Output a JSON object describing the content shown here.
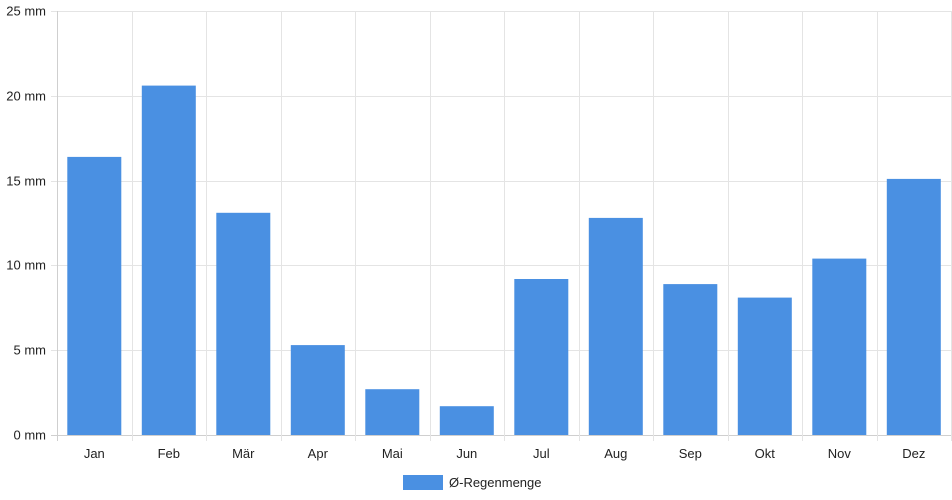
{
  "chart_data": {
    "type": "bar",
    "categories": [
      "Jan",
      "Feb",
      "Mär",
      "Apr",
      "Mai",
      "Jun",
      "Jul",
      "Aug",
      "Sep",
      "Okt",
      "Nov",
      "Dez"
    ],
    "series": [
      {
        "name": "Ø-Regenmenge",
        "color": "#4a90e2",
        "values": [
          16.4,
          20.6,
          13.1,
          5.3,
          2.7,
          1.7,
          9.2,
          12.8,
          8.9,
          8.1,
          10.4,
          15.1
        ]
      }
    ],
    "yticks": [
      "0 mm",
      "5 mm",
      "10 mm",
      "15 mm",
      "20 mm",
      "25 mm"
    ],
    "ylim": [
      0,
      25
    ],
    "grid": true,
    "legend_position": "bottom-center"
  }
}
